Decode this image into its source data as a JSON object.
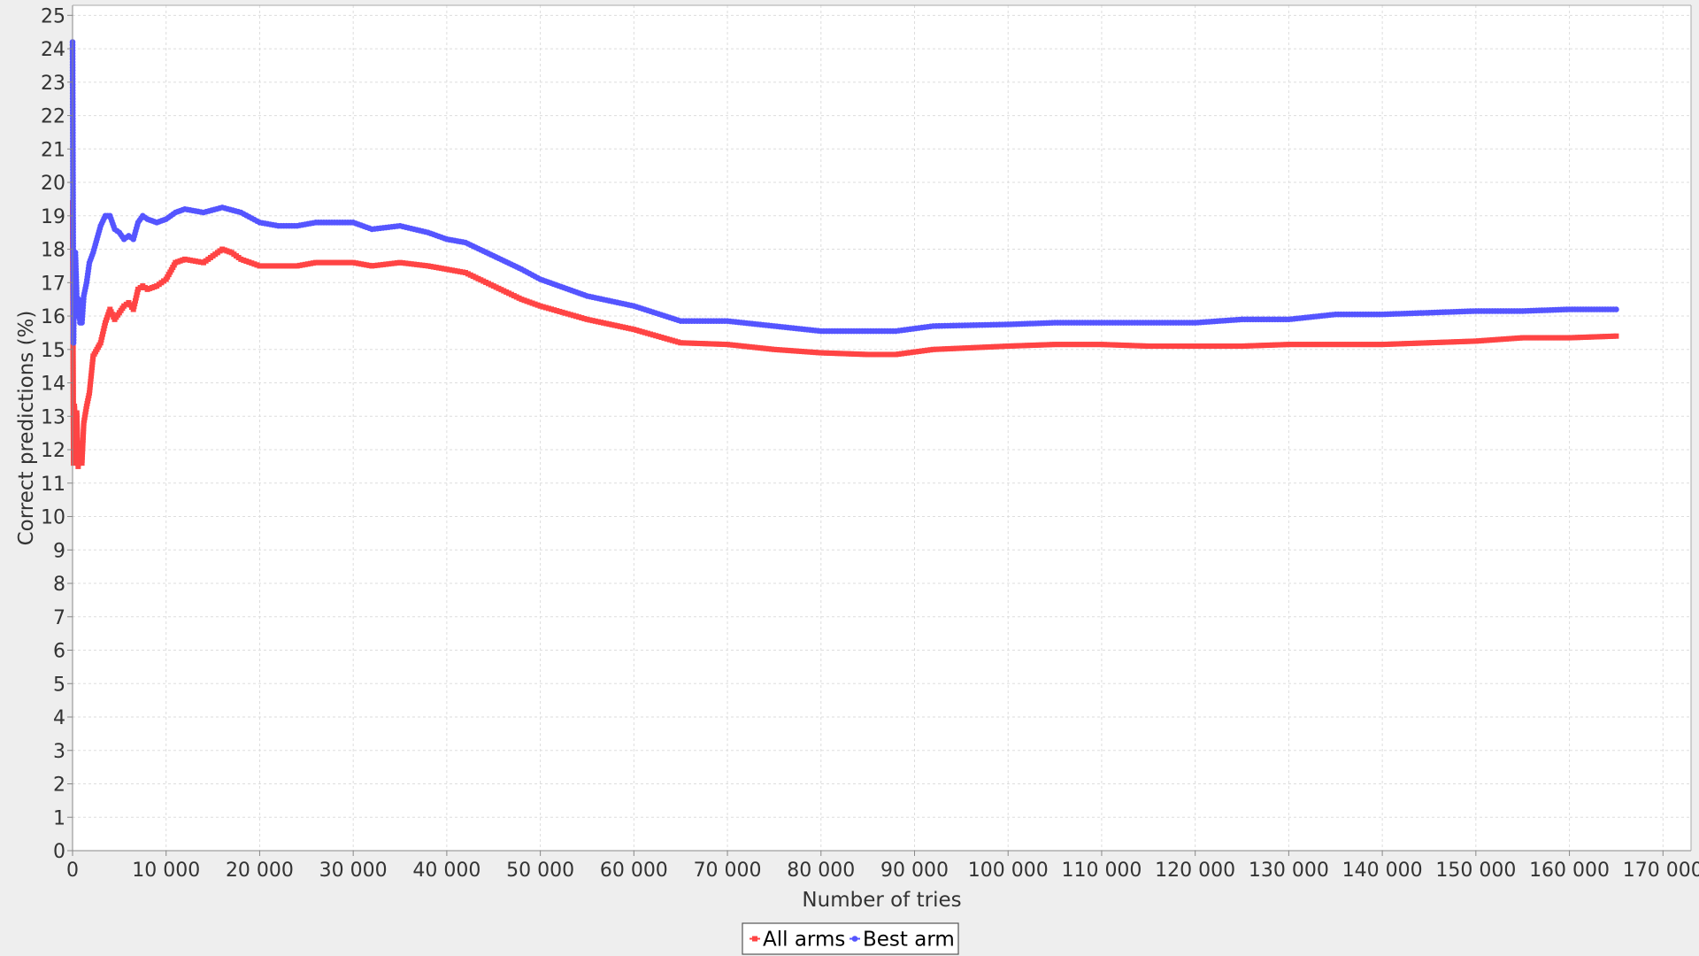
{
  "chart_data": {
    "type": "line",
    "title": "",
    "xlabel": "Number of tries",
    "ylabel": "Correct predictions (%)",
    "xlim": [
      0,
      173000
    ],
    "ylim": [
      0,
      25.3
    ],
    "x_ticks": [
      0,
      10000,
      20000,
      30000,
      40000,
      50000,
      60000,
      70000,
      80000,
      90000,
      100000,
      110000,
      120000,
      130000,
      140000,
      150000,
      160000,
      170000
    ],
    "x_tick_labels": [
      "0",
      "10 000",
      "20 000",
      "30 000",
      "40 000",
      "50 000",
      "60 000",
      "70 000",
      "80 000",
      "90 000",
      "100 000",
      "110 000",
      "120 000",
      "130 000",
      "140 000",
      "150 000",
      "160 000",
      "170 000"
    ],
    "y_ticks": [
      0,
      1,
      2,
      3,
      4,
      5,
      6,
      7,
      8,
      9,
      10,
      11,
      12,
      13,
      14,
      15,
      16,
      17,
      18,
      19,
      20,
      21,
      22,
      23,
      24,
      25
    ],
    "y_tick_labels": [
      "0",
      "1",
      "2",
      "3",
      "4",
      "5",
      "6",
      "7",
      "8",
      "9",
      "10",
      "11",
      "12",
      "13",
      "14",
      "15",
      "16",
      "17",
      "18",
      "19",
      "20",
      "21",
      "22",
      "23",
      "24",
      "25"
    ],
    "grid": true,
    "legend_position": "bottom-center",
    "series": [
      {
        "name": "All arms",
        "color": "#ff4444",
        "marker": "square",
        "x": [
          0,
          100,
          200,
          300,
          450,
          600,
          800,
          1000,
          1200,
          1500,
          1800,
          2200,
          2600,
          3000,
          3500,
          4000,
          4500,
          5000,
          5500,
          6000,
          6500,
          7000,
          7500,
          8000,
          9000,
          10000,
          11000,
          12000,
          14000,
          15000,
          16000,
          17000,
          18000,
          20000,
          22000,
          24000,
          26000,
          28000,
          30000,
          32000,
          35000,
          38000,
          40000,
          42000,
          45000,
          48000,
          50000,
          55000,
          60000,
          65000,
          70000,
          75000,
          80000,
          85000,
          88000,
          92000,
          100000,
          105000,
          110000,
          115000,
          120000,
          125000,
          130000,
          135000,
          140000,
          145000,
          150000,
          155000,
          160000,
          165000
        ],
        "y": [
          19.4,
          11.6,
          13.3,
          12.4,
          13.1,
          11.5,
          12.2,
          11.6,
          12.8,
          13.3,
          13.7,
          14.8,
          15.0,
          15.2,
          15.8,
          16.2,
          15.9,
          16.1,
          16.3,
          16.4,
          16.2,
          16.8,
          16.9,
          16.8,
          16.9,
          17.1,
          17.6,
          17.7,
          17.6,
          17.8,
          18.0,
          17.9,
          17.7,
          17.5,
          17.5,
          17.5,
          17.6,
          17.6,
          17.6,
          17.5,
          17.6,
          17.5,
          17.4,
          17.3,
          16.9,
          16.5,
          16.3,
          15.9,
          15.6,
          15.2,
          15.15,
          15.0,
          14.9,
          14.85,
          14.85,
          15.0,
          15.1,
          15.15,
          15.15,
          15.1,
          15.1,
          15.1,
          15.15,
          15.15,
          15.15,
          15.2,
          15.25,
          15.35,
          15.35,
          15.4
        ]
      },
      {
        "name": "Best arm",
        "color": "#5555ff",
        "marker": "circle",
        "x": [
          0,
          100,
          200,
          300,
          400,
          500,
          650,
          800,
          1000,
          1200,
          1500,
          1800,
          2200,
          2600,
          3000,
          3500,
          4000,
          4500,
          5000,
          5500,
          6000,
          6500,
          7000,
          7500,
          8000,
          9000,
          10000,
          11000,
          12000,
          14000,
          16000,
          18000,
          20000,
          22000,
          24000,
          26000,
          28000,
          30000,
          32000,
          35000,
          38000,
          40000,
          42000,
          45000,
          48000,
          50000,
          55000,
          60000,
          65000,
          70000,
          75000,
          80000,
          85000,
          88000,
          92000,
          100000,
          105000,
          110000,
          115000,
          120000,
          125000,
          130000,
          135000,
          140000,
          145000,
          150000,
          155000,
          160000,
          165000
        ],
        "y": [
          24.2,
          15.2,
          17.7,
          17.9,
          17.0,
          16.0,
          16.5,
          15.8,
          15.8,
          16.6,
          17.0,
          17.6,
          17.9,
          18.3,
          18.7,
          19.0,
          19.0,
          18.6,
          18.5,
          18.3,
          18.4,
          18.3,
          18.8,
          19.0,
          18.9,
          18.8,
          18.9,
          19.1,
          19.2,
          19.1,
          19.25,
          19.1,
          18.8,
          18.7,
          18.7,
          18.8,
          18.8,
          18.8,
          18.6,
          18.7,
          18.5,
          18.3,
          18.2,
          17.8,
          17.4,
          17.1,
          16.6,
          16.3,
          15.85,
          15.85,
          15.7,
          15.55,
          15.55,
          15.55,
          15.7,
          15.75,
          15.8,
          15.8,
          15.8,
          15.8,
          15.9,
          15.9,
          16.05,
          16.05,
          16.1,
          16.15,
          16.15,
          16.2,
          16.2
        ]
      }
    ]
  }
}
